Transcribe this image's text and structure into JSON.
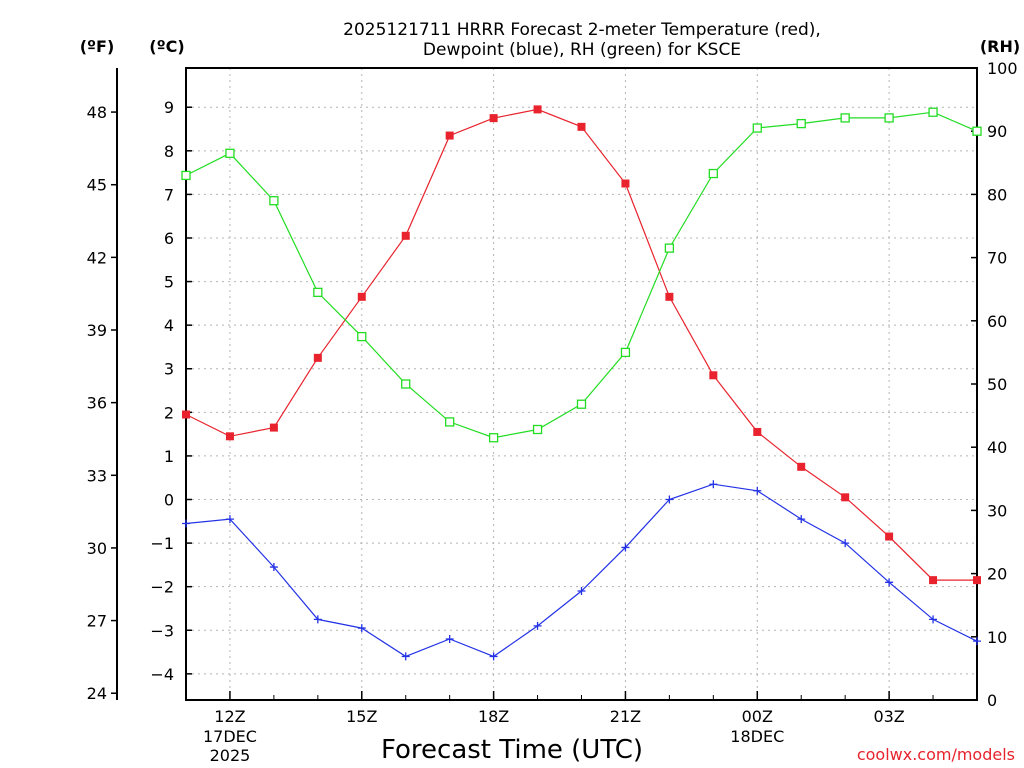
{
  "chart_data": {
    "type": "line",
    "title_line1": "2025121711 HRRR Forecast 2-meter Temperature (red),",
    "title_line2": "Dewpoint (blue), RH (green) for KSCE",
    "xlabel": "Forecast Time (UTC)",
    "credit": "coolwx.com/models",
    "units": {
      "fahrenheit": "(ºF)",
      "celsius": "(ºC)",
      "rh": "(RH)"
    },
    "x_hours": [
      11,
      12,
      13,
      14,
      15,
      16,
      17,
      18,
      19,
      20,
      21,
      22,
      23,
      24,
      25,
      26,
      27,
      28,
      29
    ],
    "xlim": [
      11,
      29
    ],
    "celsius_axis": {
      "ylim": [
        -4.6,
        9.9
      ],
      "ticks": [
        9,
        8,
        7,
        6,
        5,
        4,
        3,
        2,
        1,
        0,
        -1,
        -2,
        -3,
        -4
      ]
    },
    "fahrenheit_axis": {
      "ticks": [
        48,
        45,
        42,
        39,
        36,
        33,
        30,
        27,
        24
      ]
    },
    "rh_axis": {
      "ylim": [
        0,
        100
      ],
      "ticks": [
        100,
        90,
        80,
        70,
        60,
        50,
        40,
        30,
        20,
        10,
        0
      ]
    },
    "x_ticks": [
      {
        "hour": 12,
        "label": "12Z",
        "sub1": "17DEC",
        "sub2": "2025"
      },
      {
        "hour": 15,
        "label": "15Z",
        "sub1": "",
        "sub2": ""
      },
      {
        "hour": 18,
        "label": "18Z",
        "sub1": "",
        "sub2": ""
      },
      {
        "hour": 21,
        "label": "21Z",
        "sub1": "",
        "sub2": ""
      },
      {
        "hour": 24,
        "label": "00Z",
        "sub1": "18DEC",
        "sub2": ""
      },
      {
        "hour": 27,
        "label": "03Z",
        "sub1": "",
        "sub2": ""
      }
    ],
    "series": [
      {
        "name": "2-meter Temperature",
        "axis": "celsius",
        "color": "#e8232d",
        "marker": "filled-square",
        "values": [
          1.95,
          1.45,
          1.65,
          3.25,
          4.65,
          6.05,
          8.35,
          8.75,
          8.95,
          8.55,
          7.25,
          4.65,
          2.85,
          1.55,
          0.75,
          0.05,
          -0.85,
          -1.85,
          -1.85
        ]
      },
      {
        "name": "Dewpoint",
        "axis": "celsius",
        "color": "#2332e6",
        "marker": "plus",
        "values": [
          -0.55,
          -0.45,
          -1.55,
          -2.75,
          -2.95,
          -3.6,
          -3.2,
          -3.6,
          -2.9,
          -2.1,
          -1.1,
          0.0,
          0.35,
          0.2,
          -0.45,
          -1.0,
          -1.9,
          -2.75,
          -3.25
        ]
      },
      {
        "name": "RH",
        "axis": "rh",
        "color": "#22dd22",
        "marker": "open-square",
        "values": [
          83,
          86.5,
          79,
          64.5,
          57.5,
          50,
          44,
          41.5,
          42.8,
          46.8,
          55,
          71.5,
          83.3,
          90.5,
          91.2,
          92.1,
          92.1,
          93,
          90
        ]
      }
    ]
  }
}
